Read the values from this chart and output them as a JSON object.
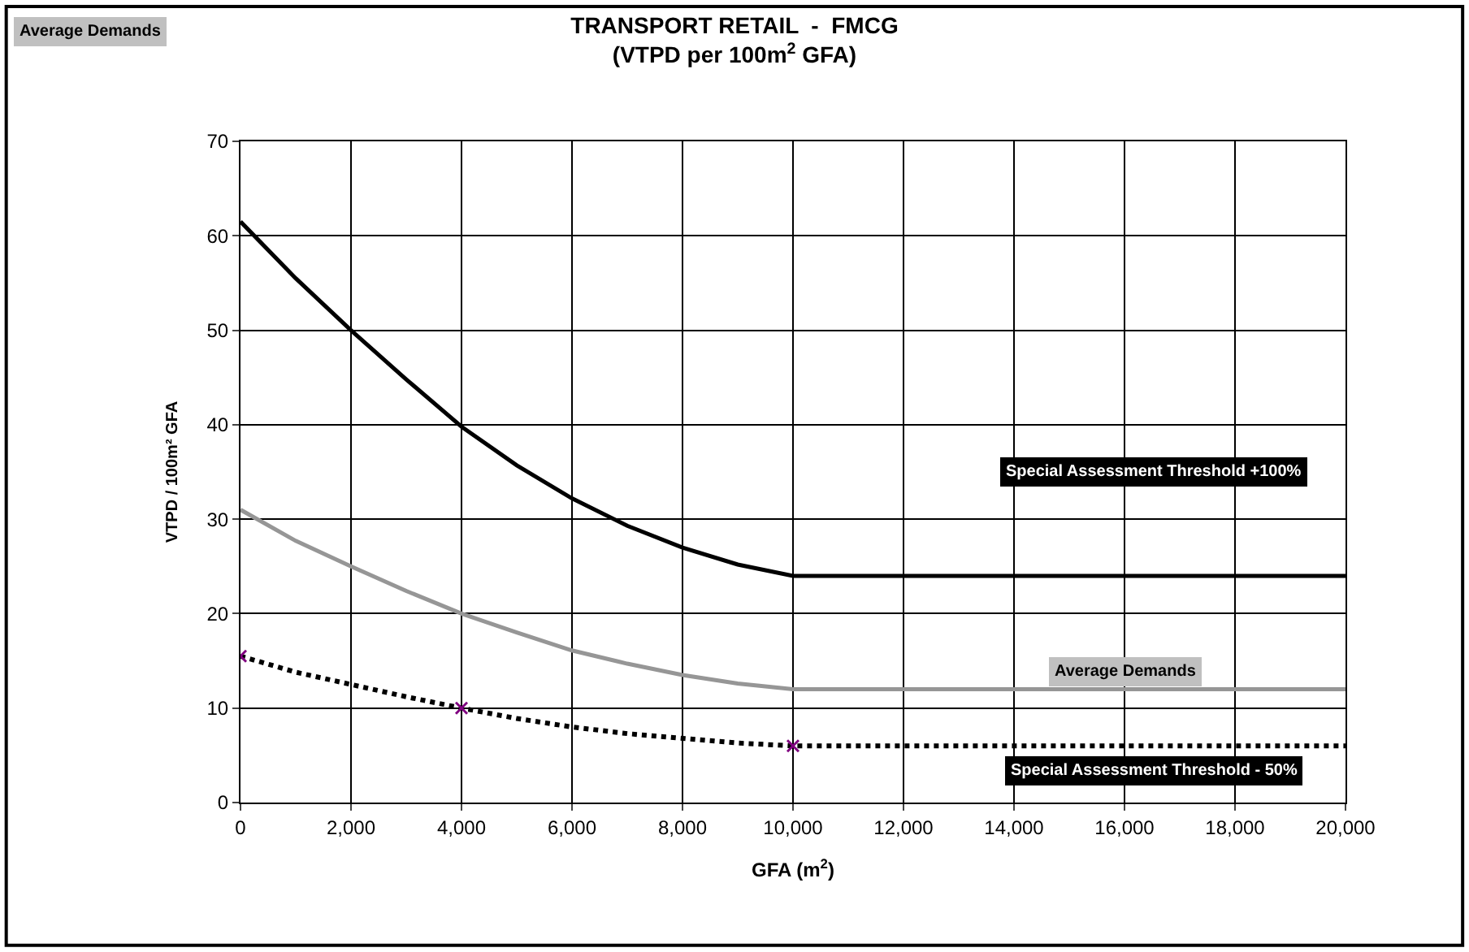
{
  "chart_data": {
    "type": "line",
    "title": "TRANSPORT RETAIL  -  FMCG",
    "subtitle": "(VTPD per 100m$^{2}$ GFA)",
    "xlabel": "GFA (m$^{2}$)",
    "ylabel": "VTPD / 100m² GFA",
    "x": [
      0,
      1000,
      2000,
      3000,
      4000,
      5000,
      6000,
      7000,
      8000,
      9000,
      10000,
      20000
    ],
    "series": [
      {
        "color": "#000000",
        "values": [
          61.5,
          55.5,
          50,
          44.8,
          39.8,
          35.7,
          32.2,
          29.3,
          27,
          25.2,
          24,
          24
        ]
      },
      {
        "color": "#969696",
        "values": [
          31,
          27.7,
          25,
          22.4,
          20,
          18,
          16.1,
          14.7,
          13.5,
          12.6,
          12,
          12
        ]
      },
      {
        "color": "#000000",
        "line_style": "dotted",
        "values": [
          15.5,
          13.8,
          12.5,
          11.2,
          10,
          8.9,
          8,
          7.3,
          6.8,
          6.3,
          6,
          6
        ]
      },
      {
        "type": "scatter",
        "color": "#800080",
        "marker": "cross",
        "x": [
          0,
          4000,
          10000
        ],
        "values": [
          15.5,
          10,
          6
        ]
      }
    ],
    "xlim": [
      0,
      20000
    ],
    "xticks": [
      {
        "value": 0,
        "label": "0"
      },
      {
        "value": 2000,
        "label": "2,000"
      },
      {
        "value": 4000,
        "label": "4,000"
      },
      {
        "value": 6000,
        "label": "6,000"
      },
      {
        "value": 8000,
        "label": "8,000"
      },
      {
        "value": 10000,
        "label": "10,000"
      },
      {
        "value": 12000,
        "label": "12,000"
      },
      {
        "value": 14000,
        "label": "14,000"
      },
      {
        "value": 16000,
        "label": "16,000"
      },
      {
        "value": 18000,
        "label": "18,000"
      },
      {
        "value": 20000,
        "label": "20,000"
      }
    ],
    "ylim": [
      0,
      70
    ],
    "yticks": [
      0,
      10,
      20,
      30,
      40,
      50,
      60,
      70
    ],
    "grid": true,
    "annotations": [
      "Special Assessment Threshold +100%",
      "Average Demands",
      "Special Assessment Threshold - 50%",
      "Average Demands"
    ]
  }
}
